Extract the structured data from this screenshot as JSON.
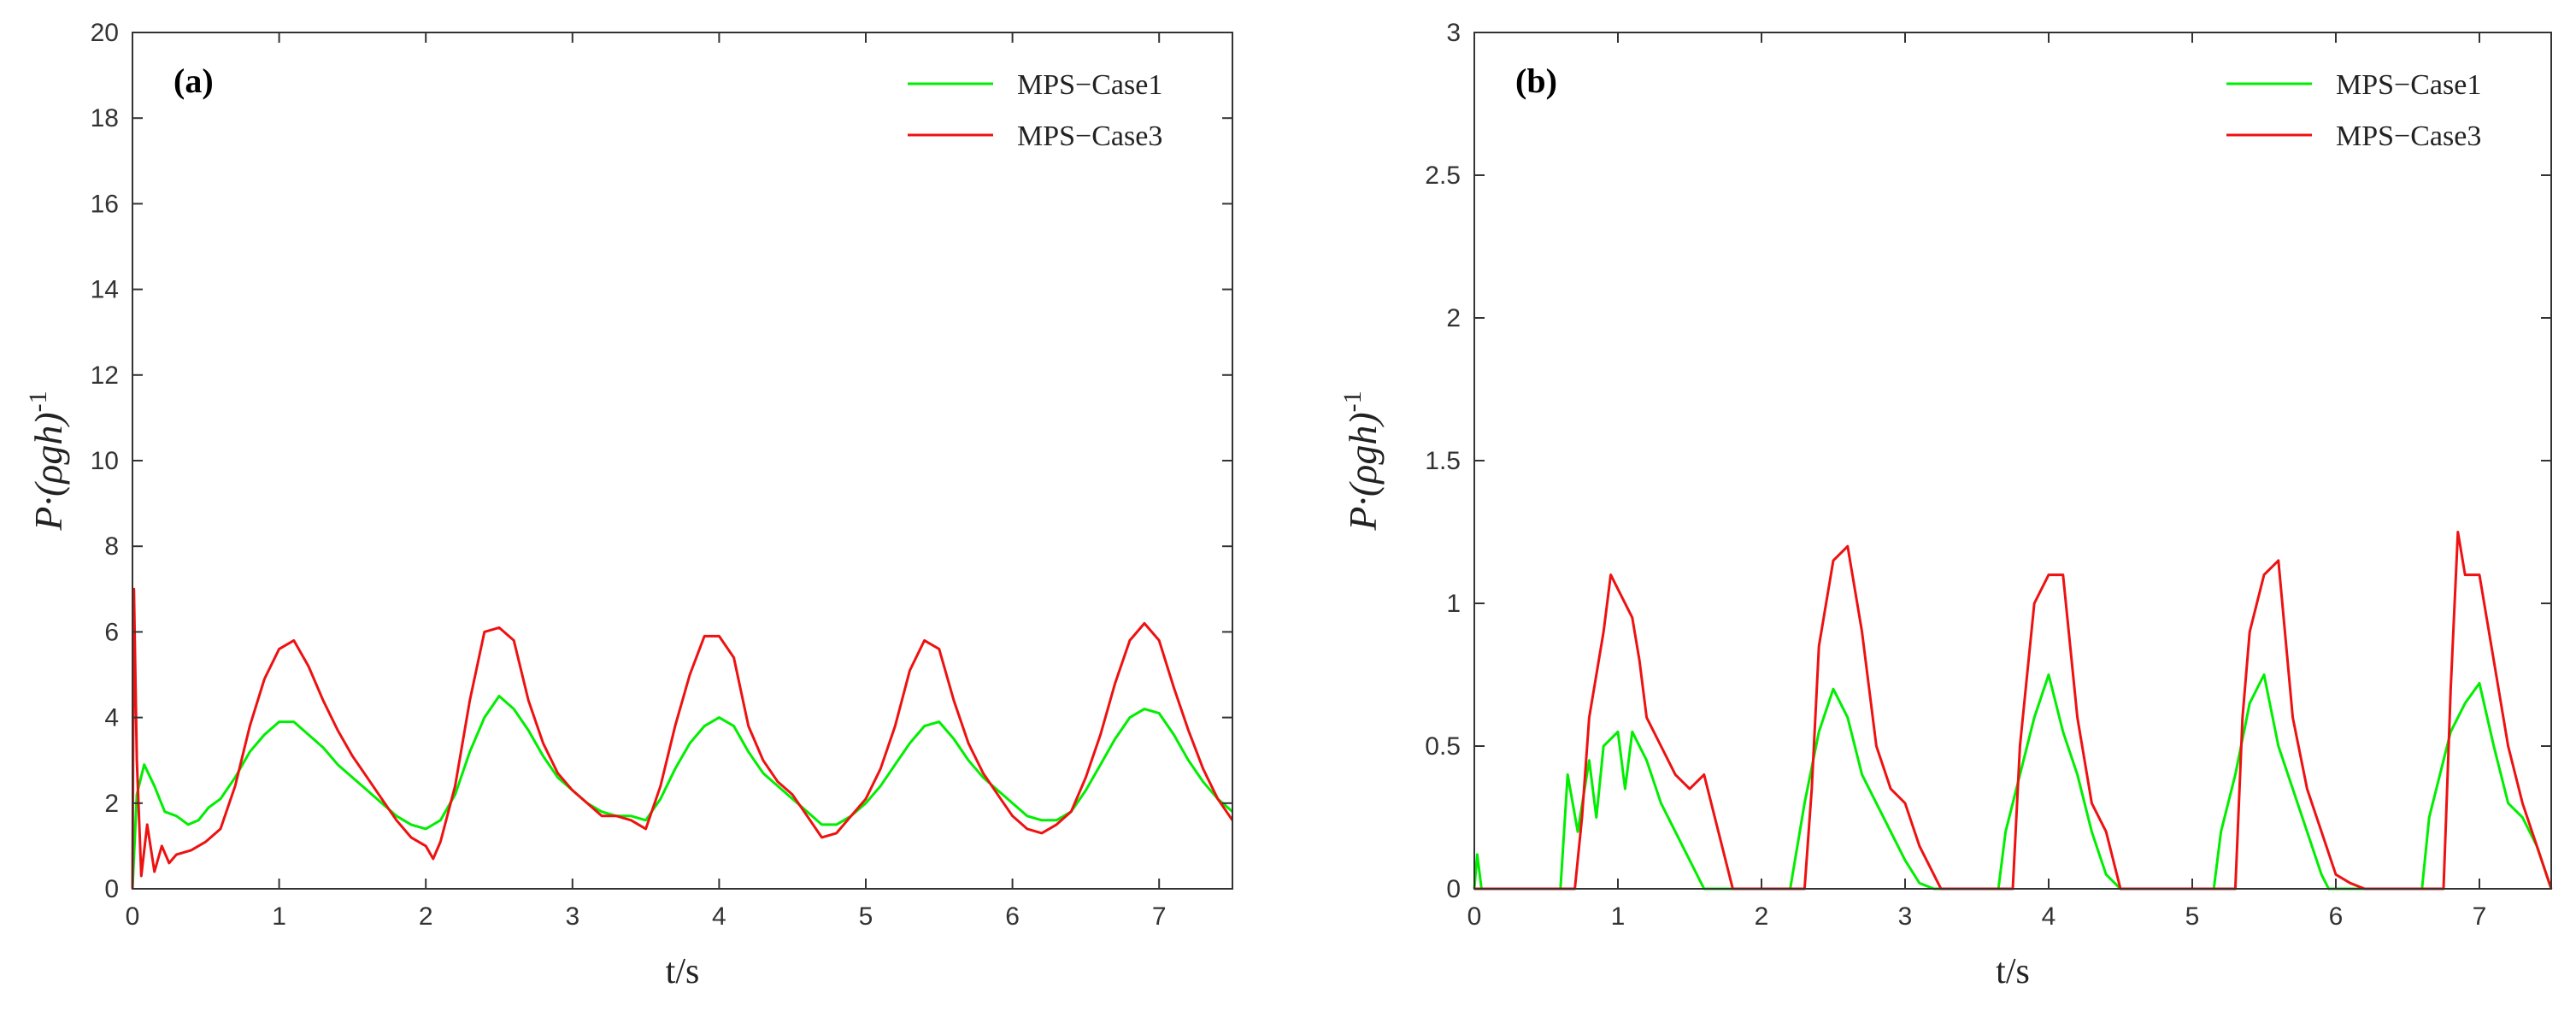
{
  "chart_data": [
    {
      "type": "line",
      "panel_label": "(a)",
      "xlabel": "t/s",
      "ylabel": "P·(ρgh)",
      "ylabel_sup": "-1",
      "xlim": [
        0,
        7.5
      ],
      "ylim": [
        0,
        20
      ],
      "xticks": [
        0,
        1,
        2,
        3,
        4,
        5,
        6,
        7
      ],
      "yticks": [
        0,
        2,
        4,
        6,
        8,
        10,
        12,
        14,
        16,
        18,
        20
      ],
      "legend_position": "top-right",
      "series": [
        {
          "name": "MPS−Case1",
          "color": "#00ee00",
          "points": [
            [
              0,
              0
            ],
            [
              0.03,
              2.2
            ],
            [
              0.08,
              2.9
            ],
            [
              0.15,
              2.4
            ],
            [
              0.22,
              1.8
            ],
            [
              0.3,
              1.7
            ],
            [
              0.38,
              1.5
            ],
            [
              0.45,
              1.6
            ],
            [
              0.52,
              1.9
            ],
            [
              0.6,
              2.1
            ],
            [
              0.7,
              2.6
            ],
            [
              0.8,
              3.2
            ],
            [
              0.9,
              3.6
            ],
            [
              1.0,
              3.9
            ],
            [
              1.1,
              3.9
            ],
            [
              1.2,
              3.6
            ],
            [
              1.3,
              3.3
            ],
            [
              1.4,
              2.9
            ],
            [
              1.5,
              2.6
            ],
            [
              1.6,
              2.3
            ],
            [
              1.7,
              2.0
            ],
            [
              1.8,
              1.7
            ],
            [
              1.9,
              1.5
            ],
            [
              2.0,
              1.4
            ],
            [
              2.1,
              1.6
            ],
            [
              2.2,
              2.2
            ],
            [
              2.3,
              3.2
            ],
            [
              2.4,
              4.0
            ],
            [
              2.5,
              4.5
            ],
            [
              2.6,
              4.2
            ],
            [
              2.7,
              3.7
            ],
            [
              2.8,
              3.1
            ],
            [
              2.9,
              2.6
            ],
            [
              3.0,
              2.3
            ],
            [
              3.1,
              2.0
            ],
            [
              3.2,
              1.8
            ],
            [
              3.3,
              1.7
            ],
            [
              3.4,
              1.7
            ],
            [
              3.5,
              1.6
            ],
            [
              3.6,
              2.1
            ],
            [
              3.7,
              2.8
            ],
            [
              3.8,
              3.4
            ],
            [
              3.9,
              3.8
            ],
            [
              4.0,
              4.0
            ],
            [
              4.1,
              3.8
            ],
            [
              4.2,
              3.2
            ],
            [
              4.3,
              2.7
            ],
            [
              4.4,
              2.4
            ],
            [
              4.5,
              2.1
            ],
            [
              4.6,
              1.8
            ],
            [
              4.7,
              1.5
            ],
            [
              4.8,
              1.5
            ],
            [
              4.9,
              1.7
            ],
            [
              5.0,
              2.0
            ],
            [
              5.1,
              2.4
            ],
            [
              5.2,
              2.9
            ],
            [
              5.3,
              3.4
            ],
            [
              5.4,
              3.8
            ],
            [
              5.5,
              3.9
            ],
            [
              5.6,
              3.5
            ],
            [
              5.7,
              3.0
            ],
            [
              5.8,
              2.6
            ],
            [
              5.9,
              2.3
            ],
            [
              6.0,
              2.0
            ],
            [
              6.1,
              1.7
            ],
            [
              6.2,
              1.6
            ],
            [
              6.3,
              1.6
            ],
            [
              6.4,
              1.8
            ],
            [
              6.5,
              2.3
            ],
            [
              6.6,
              2.9
            ],
            [
              6.7,
              3.5
            ],
            [
              6.8,
              4.0
            ],
            [
              6.9,
              4.2
            ],
            [
              7.0,
              4.1
            ],
            [
              7.1,
              3.6
            ],
            [
              7.2,
              3.0
            ],
            [
              7.3,
              2.5
            ],
            [
              7.4,
              2.1
            ],
            [
              7.5,
              1.8
            ]
          ]
        },
        {
          "name": "MPS−Case3",
          "color": "#ee1111",
          "points": [
            [
              0,
              0
            ],
            [
              0.01,
              7.0
            ],
            [
              0.03,
              3.0
            ],
            [
              0.06,
              0.3
            ],
            [
              0.1,
              1.5
            ],
            [
              0.15,
              0.4
            ],
            [
              0.2,
              1.0
            ],
            [
              0.25,
              0.6
            ],
            [
              0.3,
              0.8
            ],
            [
              0.4,
              0.9
            ],
            [
              0.5,
              1.1
            ],
            [
              0.6,
              1.4
            ],
            [
              0.7,
              2.4
            ],
            [
              0.8,
              3.8
            ],
            [
              0.9,
              4.9
            ],
            [
              1.0,
              5.6
            ],
            [
              1.1,
              5.8
            ],
            [
              1.2,
              5.2
            ],
            [
              1.3,
              4.4
            ],
            [
              1.4,
              3.7
            ],
            [
              1.5,
              3.1
            ],
            [
              1.6,
              2.6
            ],
            [
              1.7,
              2.1
            ],
            [
              1.8,
              1.6
            ],
            [
              1.9,
              1.2
            ],
            [
              2.0,
              1.0
            ],
            [
              2.05,
              0.7
            ],
            [
              2.1,
              1.1
            ],
            [
              2.2,
              2.4
            ],
            [
              2.3,
              4.4
            ],
            [
              2.4,
              6.0
            ],
            [
              2.5,
              6.1
            ],
            [
              2.6,
              5.8
            ],
            [
              2.7,
              4.4
            ],
            [
              2.8,
              3.4
            ],
            [
              2.9,
              2.7
            ],
            [
              3.0,
              2.3
            ],
            [
              3.1,
              2.0
            ],
            [
              3.2,
              1.7
            ],
            [
              3.3,
              1.7
            ],
            [
              3.4,
              1.6
            ],
            [
              3.5,
              1.4
            ],
            [
              3.6,
              2.4
            ],
            [
              3.7,
              3.8
            ],
            [
              3.8,
              5.0
            ],
            [
              3.9,
              5.9
            ],
            [
              4.0,
              5.9
            ],
            [
              4.1,
              5.4
            ],
            [
              4.2,
              3.8
            ],
            [
              4.3,
              3.0
            ],
            [
              4.4,
              2.5
            ],
            [
              4.5,
              2.2
            ],
            [
              4.6,
              1.7
            ],
            [
              4.7,
              1.2
            ],
            [
              4.8,
              1.3
            ],
            [
              4.9,
              1.7
            ],
            [
              5.0,
              2.1
            ],
            [
              5.1,
              2.8
            ],
            [
              5.2,
              3.8
            ],
            [
              5.3,
              5.1
            ],
            [
              5.4,
              5.8
            ],
            [
              5.5,
              5.6
            ],
            [
              5.6,
              4.4
            ],
            [
              5.7,
              3.4
            ],
            [
              5.8,
              2.7
            ],
            [
              5.9,
              2.2
            ],
            [
              6.0,
              1.7
            ],
            [
              6.1,
              1.4
            ],
            [
              6.2,
              1.3
            ],
            [
              6.3,
              1.5
            ],
            [
              6.4,
              1.8
            ],
            [
              6.5,
              2.6
            ],
            [
              6.6,
              3.6
            ],
            [
              6.7,
              4.8
            ],
            [
              6.8,
              5.8
            ],
            [
              6.9,
              6.2
            ],
            [
              7.0,
              5.8
            ],
            [
              7.1,
              4.7
            ],
            [
              7.2,
              3.7
            ],
            [
              7.3,
              2.8
            ],
            [
              7.4,
              2.1
            ],
            [
              7.5,
              1.6
            ]
          ]
        }
      ]
    },
    {
      "type": "line",
      "panel_label": "(b)",
      "xlabel": "t/s",
      "ylabel": "P·(ρgh)",
      "ylabel_sup": "-1",
      "xlim": [
        0,
        7.5
      ],
      "ylim": [
        0,
        3
      ],
      "xticks": [
        0,
        1,
        2,
        3,
        4,
        5,
        6,
        7
      ],
      "yticks": [
        0,
        0.5,
        1,
        1.5,
        2,
        2.5,
        3
      ],
      "legend_position": "top-right",
      "series": [
        {
          "name": "MPS−Case1",
          "color": "#00ee00",
          "points": [
            [
              0,
              0
            ],
            [
              0.02,
              0.12
            ],
            [
              0.05,
              0
            ],
            [
              0.6,
              0
            ],
            [
              0.65,
              0.4
            ],
            [
              0.72,
              0.2
            ],
            [
              0.8,
              0.45
            ],
            [
              0.85,
              0.25
            ],
            [
              0.9,
              0.5
            ],
            [
              1.0,
              0.55
            ],
            [
              1.05,
              0.35
            ],
            [
              1.1,
              0.55
            ],
            [
              1.2,
              0.45
            ],
            [
              1.3,
              0.3
            ],
            [
              1.4,
              0.2
            ],
            [
              1.5,
              0.1
            ],
            [
              1.6,
              0
            ],
            [
              2.2,
              0
            ],
            [
              2.3,
              0.3
            ],
            [
              2.4,
              0.55
            ],
            [
              2.5,
              0.7
            ],
            [
              2.6,
              0.6
            ],
            [
              2.7,
              0.4
            ],
            [
              2.8,
              0.3
            ],
            [
              2.9,
              0.2
            ],
            [
              3.0,
              0.1
            ],
            [
              3.1,
              0.02
            ],
            [
              3.2,
              0
            ],
            [
              3.65,
              0
            ],
            [
              3.7,
              0.2
            ],
            [
              3.8,
              0.4
            ],
            [
              3.9,
              0.6
            ],
            [
              4.0,
              0.75
            ],
            [
              4.1,
              0.55
            ],
            [
              4.2,
              0.4
            ],
            [
              4.3,
              0.2
            ],
            [
              4.4,
              0.05
            ],
            [
              4.5,
              0
            ],
            [
              5.15,
              0
            ],
            [
              5.2,
              0.2
            ],
            [
              5.3,
              0.4
            ],
            [
              5.4,
              0.65
            ],
            [
              5.5,
              0.75
            ],
            [
              5.6,
              0.5
            ],
            [
              5.7,
              0.35
            ],
            [
              5.8,
              0.2
            ],
            [
              5.9,
              0.05
            ],
            [
              5.95,
              0
            ],
            [
              6.6,
              0
            ],
            [
              6.65,
              0.25
            ],
            [
              6.7,
              0.35
            ],
            [
              6.8,
              0.55
            ],
            [
              6.9,
              0.65
            ],
            [
              7.0,
              0.72
            ],
            [
              7.1,
              0.5
            ],
            [
              7.2,
              0.3
            ],
            [
              7.3,
              0.25
            ],
            [
              7.4,
              0.15
            ],
            [
              7.5,
              0
            ]
          ]
        },
        {
          "name": "MPS−Case3",
          "color": "#ee1111",
          "points": [
            [
              0,
              0
            ],
            [
              0.7,
              0
            ],
            [
              0.75,
              0.25
            ],
            [
              0.8,
              0.6
            ],
            [
              0.9,
              0.9
            ],
            [
              0.95,
              1.1
            ],
            [
              1.0,
              1.05
            ],
            [
              1.1,
              0.95
            ],
            [
              1.15,
              0.8
            ],
            [
              1.2,
              0.6
            ],
            [
              1.3,
              0.5
            ],
            [
              1.4,
              0.4
            ],
            [
              1.5,
              0.35
            ],
            [
              1.6,
              0.4
            ],
            [
              1.7,
              0.2
            ],
            [
              1.8,
              0
            ],
            [
              2.3,
              0
            ],
            [
              2.35,
              0.35
            ],
            [
              2.4,
              0.85
            ],
            [
              2.5,
              1.15
            ],
            [
              2.6,
              1.2
            ],
            [
              2.7,
              0.9
            ],
            [
              2.8,
              0.5
            ],
            [
              2.9,
              0.35
            ],
            [
              3.0,
              0.3
            ],
            [
              3.1,
              0.15
            ],
            [
              3.2,
              0.05
            ],
            [
              3.25,
              0
            ],
            [
              3.75,
              0
            ],
            [
              3.8,
              0.5
            ],
            [
              3.9,
              1.0
            ],
            [
              4.0,
              1.1
            ],
            [
              4.1,
              1.1
            ],
            [
              4.2,
              0.6
            ],
            [
              4.3,
              0.3
            ],
            [
              4.4,
              0.2
            ],
            [
              4.5,
              0
            ],
            [
              5.3,
              0
            ],
            [
              5.35,
              0.6
            ],
            [
              5.4,
              0.9
            ],
            [
              5.5,
              1.1
            ],
            [
              5.6,
              1.15
            ],
            [
              5.7,
              0.6
            ],
            [
              5.8,
              0.35
            ],
            [
              5.9,
              0.2
            ],
            [
              6.0,
              0.05
            ],
            [
              6.1,
              0.02
            ],
            [
              6.2,
              0
            ],
            [
              6.75,
              0
            ],
            [
              6.8,
              0.7
            ],
            [
              6.85,
              1.25
            ],
            [
              6.9,
              1.1
            ],
            [
              7.0,
              1.1
            ],
            [
              7.1,
              0.8
            ],
            [
              7.2,
              0.5
            ],
            [
              7.3,
              0.3
            ],
            [
              7.4,
              0.15
            ],
            [
              7.5,
              0
            ]
          ]
        }
      ]
    }
  ]
}
